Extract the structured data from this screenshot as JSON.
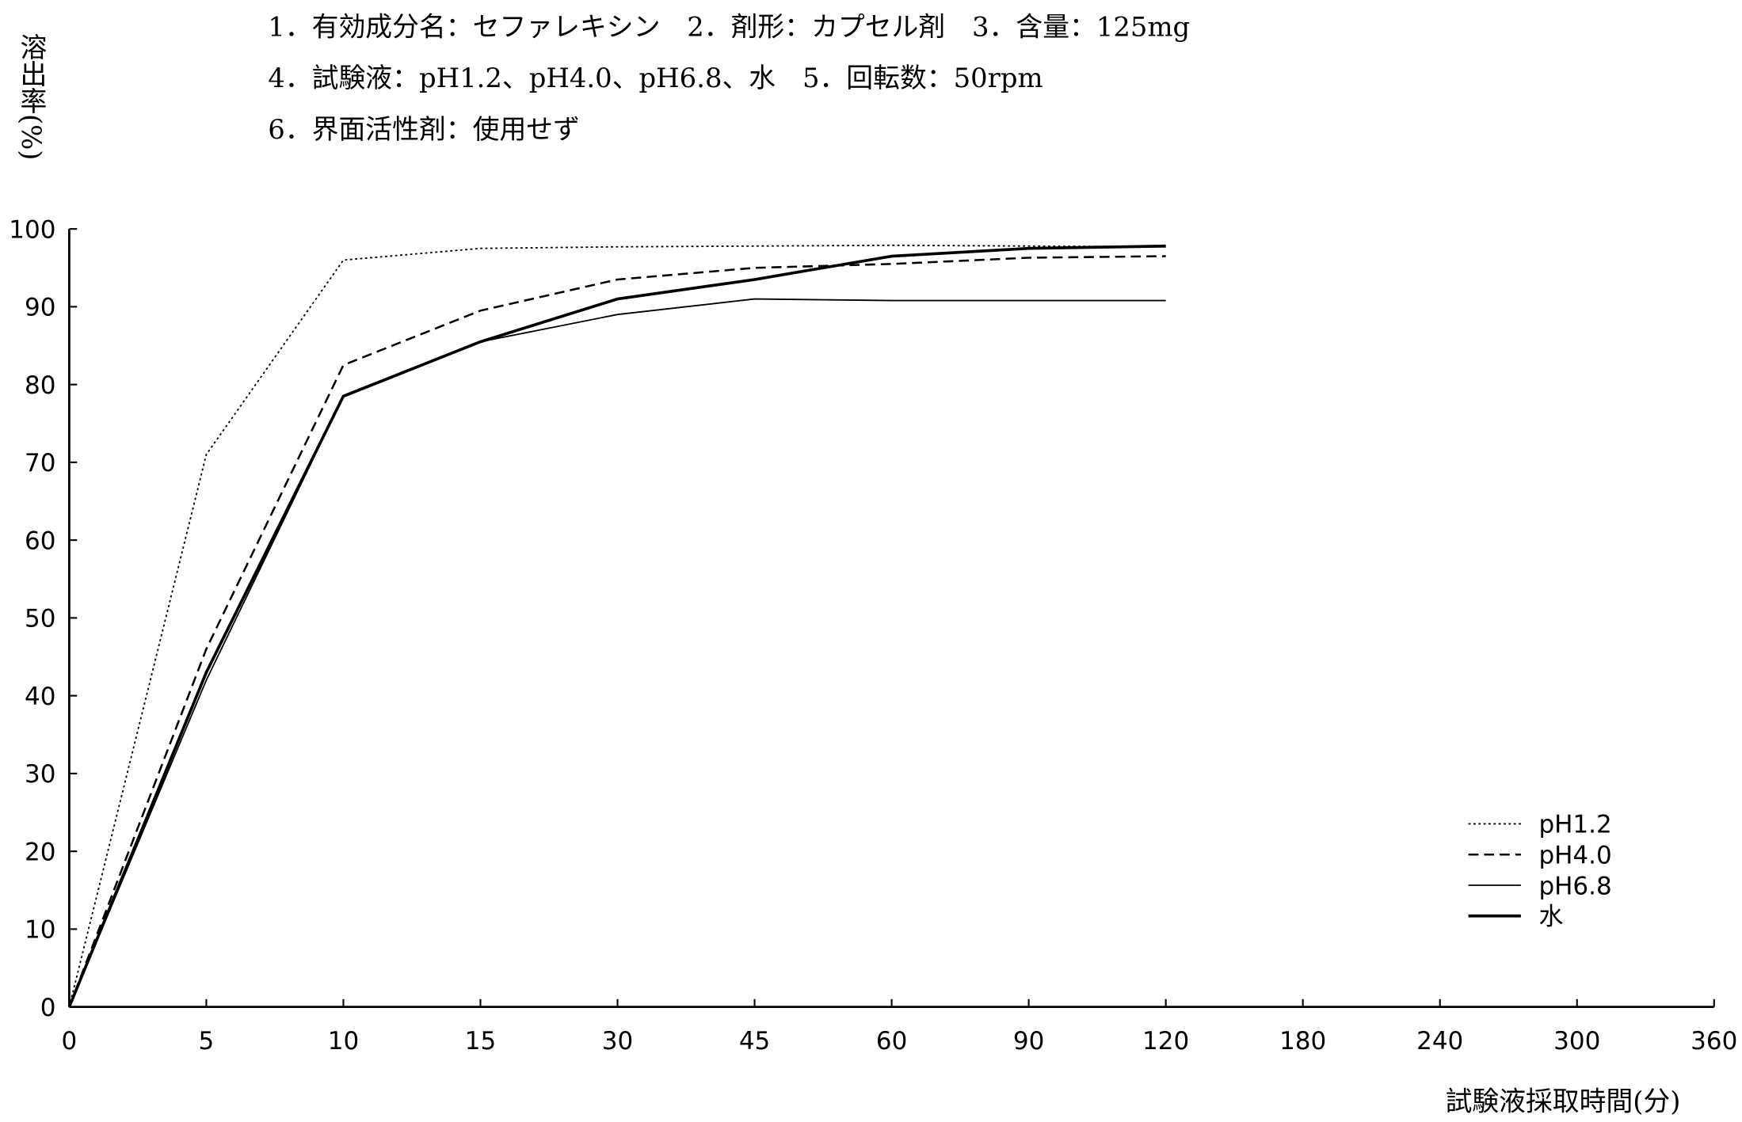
{
  "conditions": [
    "1．有効成分名：セファレキシン　2．剤形：カプセル剤　3．含量：125mg",
    "4．試験液：pH1.2、pH4.0、pH6.8、水　5．回転数：50rpm",
    "6．界面活性剤：使用せず"
  ],
  "chart_data": {
    "type": "line",
    "title": "",
    "xlabel": "試験液採取時間(分)",
    "ylabel": "溶出率(%)",
    "x_scale": "categorical (equally spaced ticks)",
    "categories": [
      "0",
      "5",
      "10",
      "15",
      "30",
      "45",
      "60",
      "90",
      "120",
      "180",
      "240",
      "300",
      "360"
    ],
    "ylim": [
      0,
      100
    ],
    "yticks": [
      0,
      10,
      20,
      30,
      40,
      50,
      60,
      70,
      80,
      90,
      100
    ],
    "grid": false,
    "legend_position": "bottom-right",
    "series": [
      {
        "name": "pH1.2",
        "style": "dotted",
        "x": [
          0,
          5,
          10,
          15,
          30,
          45,
          60,
          90,
          120
        ],
        "values": [
          0,
          71,
          96,
          97.5,
          97.7,
          97.8,
          97.9,
          97.8,
          97.7
        ]
      },
      {
        "name": "pH4.0",
        "style": "dashed",
        "x": [
          0,
          5,
          10,
          15,
          30,
          45,
          60,
          90,
          120
        ],
        "values": [
          0,
          46,
          82.5,
          89.5,
          93.5,
          95,
          95.5,
          96.3,
          96.5
        ]
      },
      {
        "name": "pH6.8",
        "style": "thin-solid",
        "x": [
          0,
          5,
          10,
          15,
          30,
          45,
          60,
          90,
          120
        ],
        "values": [
          0,
          42,
          78.5,
          85.5,
          89,
          91,
          90.8,
          90.8,
          90.8
        ]
      },
      {
        "name": "水",
        "style": "thick-solid",
        "x": [
          0,
          5,
          10,
          15,
          30,
          45,
          60,
          90,
          120
        ],
        "values": [
          0,
          43,
          78.5,
          85.5,
          91,
          93.5,
          96.5,
          97.5,
          97.8
        ]
      }
    ]
  }
}
